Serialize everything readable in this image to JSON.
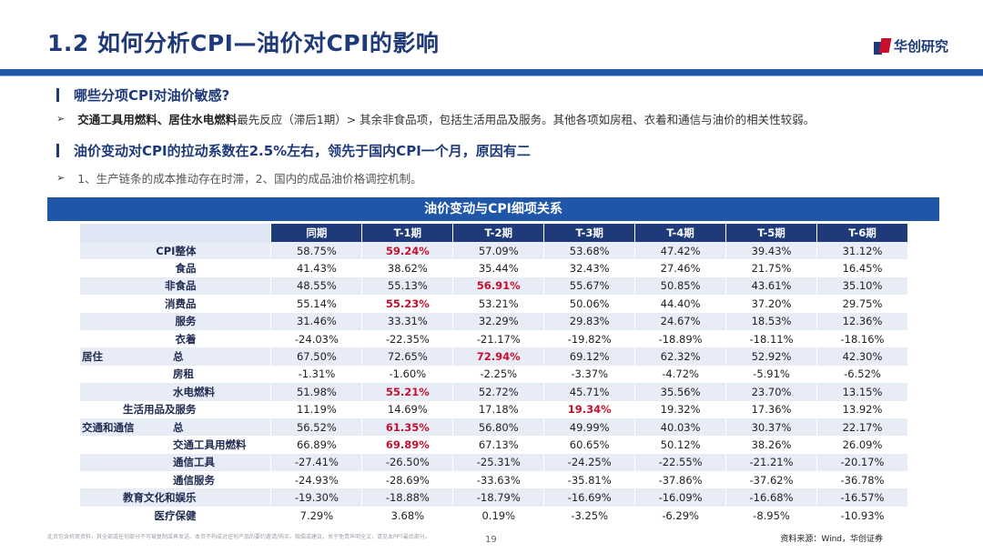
{
  "title": "1.2 如何分析CPI—油价对CPI的影响",
  "logo_text": "华创研究",
  "section1": {
    "heading": "哪些分项CPI对油价敏感?",
    "bullet_bold": "交通工具用燃料、居住水电燃料",
    "bullet_rest": "最先反应（滞后1期）> 其余非食品项，包括生活用品及服务。其他各项如房租、衣着和通信与油价的相关性较弱。"
  },
  "section2": {
    "heading": "油价变动对CPI的拉动系数在2.5%左右，领先于国内CPI一个月，原因有二",
    "bullet": "1、生产链条的成本推动存在时滞，2、国内的成品油价格调控机制。"
  },
  "table": {
    "banner": "油价变动与CPI细项关系",
    "headers": [
      "同期",
      "T-1期",
      "T-2期",
      "T-3期",
      "T-4期",
      "T-5期",
      "T-6期"
    ],
    "rows": [
      {
        "group": "",
        "label": "CPI整体",
        "values": [
          "58.75%",
          "59.24%",
          "57.09%",
          "53.68%",
          "47.42%",
          "39.43%",
          "31.12%"
        ],
        "highlight": 1
      },
      {
        "group": "",
        "label": "食品",
        "values": [
          "41.43%",
          "38.62%",
          "35.44%",
          "32.43%",
          "27.46%",
          "21.75%",
          "16.45%"
        ],
        "highlight": -1
      },
      {
        "group": "",
        "label": "非食品",
        "values": [
          "48.55%",
          "55.13%",
          "56.91%",
          "55.67%",
          "50.85%",
          "43.61%",
          "35.10%"
        ],
        "highlight": 2
      },
      {
        "group": "",
        "label": "消费品",
        "values": [
          "55.14%",
          "55.23%",
          "53.21%",
          "50.06%",
          "44.40%",
          "37.20%",
          "29.75%"
        ],
        "highlight": 1
      },
      {
        "group": "",
        "label": "服务",
        "values": [
          "31.46%",
          "33.31%",
          "32.29%",
          "29.83%",
          "24.67%",
          "18.53%",
          "12.36%"
        ],
        "highlight": -1
      },
      {
        "group": "",
        "label": "衣着",
        "values": [
          "-24.03%",
          "-22.35%",
          "-21.17%",
          "-19.82%",
          "-18.89%",
          "-18.11%",
          "-18.16%"
        ],
        "highlight": -1
      },
      {
        "group": "居住",
        "label": "总",
        "values": [
          "67.50%",
          "72.65%",
          "72.94%",
          "69.12%",
          "62.32%",
          "52.92%",
          "42.30%"
        ],
        "highlight": 2
      },
      {
        "group": "",
        "label": "房租",
        "values": [
          "-1.31%",
          "-1.60%",
          "-2.25%",
          "-3.37%",
          "-4.72%",
          "-5.91%",
          "-6.52%"
        ],
        "highlight": -1
      },
      {
        "group": "",
        "label": "水电燃料",
        "values": [
          "51.98%",
          "55.21%",
          "52.72%",
          "45.71%",
          "35.56%",
          "23.70%",
          "13.15%"
        ],
        "highlight": 1
      },
      {
        "group": "",
        "label": "生活用品及服务",
        "values": [
          "11.19%",
          "14.69%",
          "17.18%",
          "19.34%",
          "19.32%",
          "17.36%",
          "13.92%"
        ],
        "highlight": 3
      },
      {
        "group": "交通和通信",
        "label": "总",
        "values": [
          "56.52%",
          "61.35%",
          "56.80%",
          "49.99%",
          "40.03%",
          "30.37%",
          "22.17%"
        ],
        "highlight": 1
      },
      {
        "group": "",
        "label": "交通工具用燃料",
        "values": [
          "66.89%",
          "69.89%",
          "67.13%",
          "60.65%",
          "50.12%",
          "38.26%",
          "26.09%"
        ],
        "highlight": 1
      },
      {
        "group": "",
        "label": "通信工具",
        "values": [
          "-27.41%",
          "-26.50%",
          "-25.31%",
          "-24.25%",
          "-22.55%",
          "-21.21%",
          "-20.17%"
        ],
        "highlight": -1
      },
      {
        "group": "",
        "label": "通信服务",
        "values": [
          "-24.93%",
          "-28.69%",
          "-33.63%",
          "-35.81%",
          "-37.86%",
          "-37.62%",
          "-36.78%"
        ],
        "highlight": -1
      },
      {
        "group": "",
        "label": "教育文化和娱乐",
        "values": [
          "-19.30%",
          "-18.88%",
          "-18.79%",
          "-16.69%",
          "-16.09%",
          "-16.68%",
          "-16.57%"
        ],
        "highlight": -1
      },
      {
        "group": "",
        "label": "医疗保健",
        "values": [
          "7.29%",
          "3.68%",
          "0.19%",
          "-3.25%",
          "-6.29%",
          "-8.95%",
          "-10.93%"
        ],
        "highlight": -1
      }
    ]
  },
  "footer": {
    "disclaimer": "此页包含机密资料，其全部或任何部分不可被复制或再发送。本页不构成对任何产品的要约邀请/购买、赔偿或建议。关于免责声明全文，请见本PPT最后部分。",
    "page": "19",
    "source": "资料来源：Wind，华创证券"
  },
  "colors": {
    "brand_blue": "#1f3a78",
    "bar_blue": "#1f56a8",
    "highlight_red": "#c8102e"
  }
}
